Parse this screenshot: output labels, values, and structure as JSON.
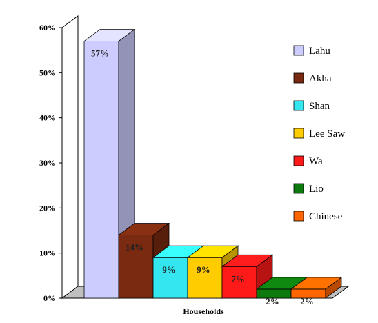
{
  "chart_data": {
    "type": "bar",
    "xlabel": "Households",
    "ylabel": "",
    "ylim": [
      0,
      60
    ],
    "yticks": [
      "0%",
      "10%",
      "20%",
      "30%",
      "40%",
      "50%",
      "60%"
    ],
    "legend_position": "right",
    "grid": false,
    "three_d": true,
    "series": [
      {
        "name": "Lahu",
        "value": 57,
        "label": "57%",
        "color": "#ccccff"
      },
      {
        "name": "Akha",
        "value": 14,
        "label": "14%",
        "color": "#7a2a10"
      },
      {
        "name": "Shan",
        "value": 9,
        "label": "9%",
        "color": "#33e6f0"
      },
      {
        "name": "Lee Saw",
        "value": 9,
        "label": "9%",
        "color": "#ffcc00"
      },
      {
        "name": "Wa",
        "value": 7,
        "label": "7%",
        "color": "#ff1a1a"
      },
      {
        "name": "Lio",
        "value": 2,
        "label": "2%",
        "color": "#0d7a0d"
      },
      {
        "name": "Chinese",
        "value": 2,
        "label": "2%",
        "color": "#ff6600"
      }
    ]
  }
}
